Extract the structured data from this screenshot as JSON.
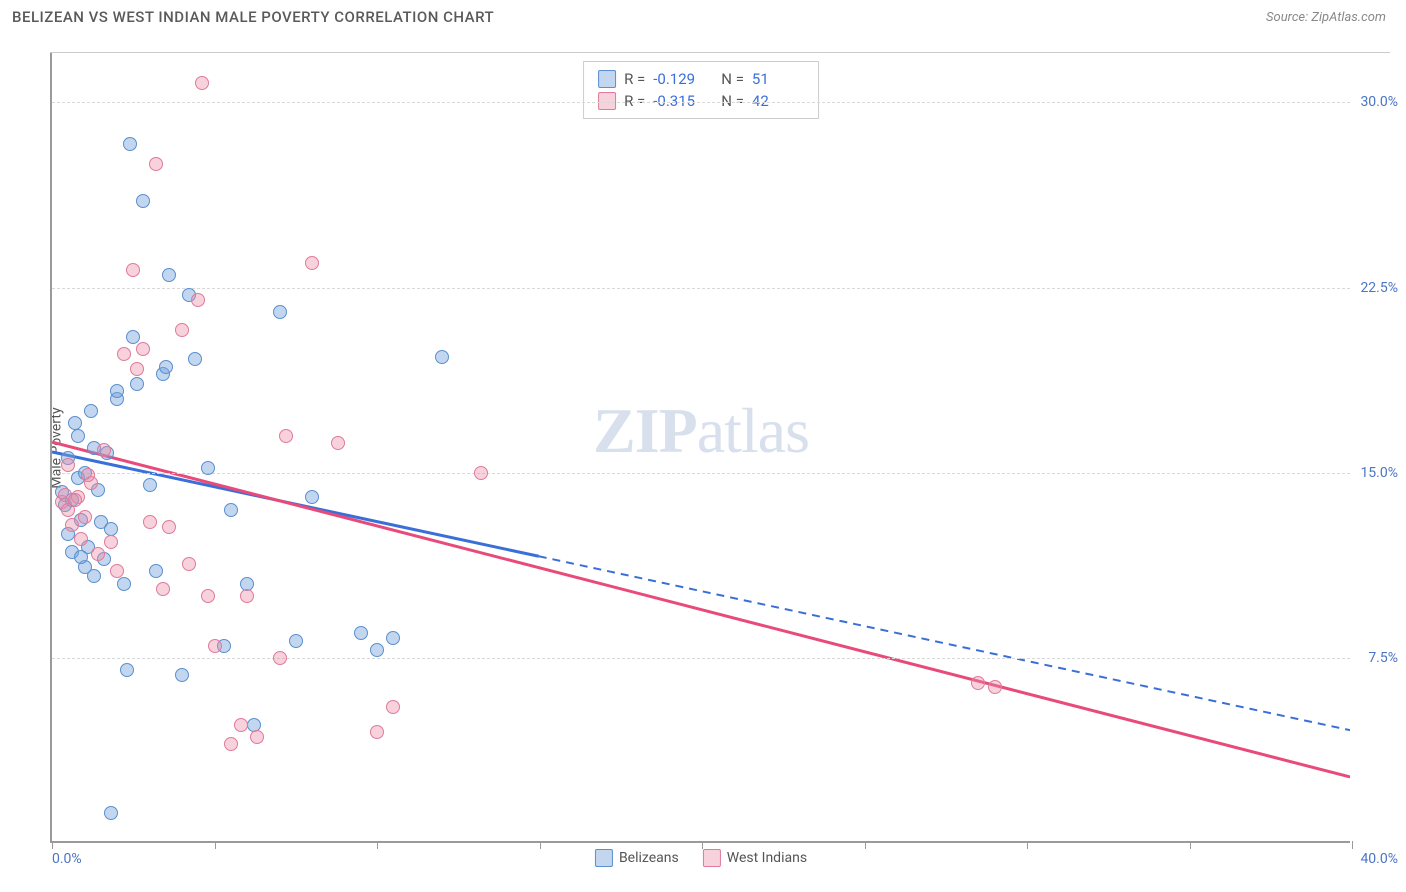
{
  "header": {
    "title": "BELIZEAN VS WEST INDIAN MALE POVERTY CORRELATION CHART",
    "source": "Source: ZipAtlas.com"
  },
  "chart": {
    "type": "scatter",
    "y_axis_label": "Male Poverty",
    "watermark_zip": "ZIP",
    "watermark_rest": "atlas",
    "xlim": [
      0,
      40
    ],
    "ylim": [
      0,
      32
    ],
    "x_ticks": [
      0,
      5,
      10,
      15,
      20,
      25,
      30,
      35,
      40
    ],
    "x_label_start": "0.0%",
    "x_label_end": "40.0%",
    "y_gridlines": [
      {
        "value": 7.5,
        "label": "7.5%"
      },
      {
        "value": 15.0,
        "label": "15.0%"
      },
      {
        "value": 22.5,
        "label": "22.5%"
      },
      {
        "value": 30.0,
        "label": "30.0%"
      }
    ],
    "series": [
      {
        "name": "Belizeans",
        "fill": "rgba(120,165,220,0.45)",
        "stroke": "#5a8fd0",
        "trend_color": "#3a6fd8",
        "trend_solid_end_x": 15,
        "r_value": "-0.129",
        "n_value": "51",
        "trend": {
          "x1": 0,
          "y1": 15.8,
          "x2": 40,
          "y2": 4.5
        },
        "points": [
          [
            0.3,
            14.2
          ],
          [
            0.4,
            13.7
          ],
          [
            0.5,
            15.6
          ],
          [
            0.5,
            12.5
          ],
          [
            0.6,
            11.8
          ],
          [
            0.7,
            17.0
          ],
          [
            0.8,
            14.8
          ],
          [
            0.8,
            16.5
          ],
          [
            0.9,
            13.1
          ],
          [
            1.0,
            11.2
          ],
          [
            1.0,
            15.0
          ],
          [
            1.1,
            12.0
          ],
          [
            1.2,
            17.5
          ],
          [
            1.3,
            10.8
          ],
          [
            1.4,
            14.3
          ],
          [
            1.5,
            13.0
          ],
          [
            1.6,
            11.5
          ],
          [
            1.7,
            15.8
          ],
          [
            1.8,
            12.7
          ],
          [
            2.0,
            18.0
          ],
          [
            2.0,
            18.3
          ],
          [
            2.2,
            10.5
          ],
          [
            2.4,
            28.3
          ],
          [
            2.5,
            20.5
          ],
          [
            2.6,
            18.6
          ],
          [
            2.8,
            26.0
          ],
          [
            3.0,
            14.5
          ],
          [
            3.2,
            11.0
          ],
          [
            3.4,
            19.0
          ],
          [
            3.5,
            19.3
          ],
          [
            3.6,
            23.0
          ],
          [
            4.0,
            6.8
          ],
          [
            4.2,
            22.2
          ],
          [
            4.4,
            19.6
          ],
          [
            4.8,
            15.2
          ],
          [
            5.3,
            8.0
          ],
          [
            5.5,
            13.5
          ],
          [
            6.0,
            10.5
          ],
          [
            6.2,
            4.8
          ],
          [
            7.0,
            21.5
          ],
          [
            7.5,
            8.2
          ],
          [
            8.0,
            14.0
          ],
          [
            9.5,
            8.5
          ],
          [
            10.0,
            7.8
          ],
          [
            10.5,
            8.3
          ],
          [
            12.0,
            19.7
          ],
          [
            1.8,
            1.2
          ],
          [
            2.3,
            7.0
          ],
          [
            0.6,
            13.9
          ],
          [
            0.9,
            11.6
          ],
          [
            1.3,
            16.0
          ]
        ]
      },
      {
        "name": "West Indians",
        "fill": "rgba(235,140,165,0.40)",
        "stroke": "#e07a9a",
        "trend_color": "#e84a7a",
        "trend_solid_end_x": 40,
        "r_value": "-0.315",
        "n_value": "42",
        "trend": {
          "x1": 0,
          "y1": 16.2,
          "x2": 40,
          "y2": 2.6
        },
        "points": [
          [
            0.3,
            13.8
          ],
          [
            0.4,
            14.1
          ],
          [
            0.5,
            13.5
          ],
          [
            0.5,
            15.3
          ],
          [
            0.6,
            12.9
          ],
          [
            0.8,
            14.0
          ],
          [
            0.9,
            12.3
          ],
          [
            1.0,
            13.2
          ],
          [
            1.2,
            14.6
          ],
          [
            1.4,
            11.7
          ],
          [
            1.6,
            15.9
          ],
          [
            2.0,
            11.0
          ],
          [
            2.2,
            19.8
          ],
          [
            2.5,
            23.2
          ],
          [
            2.8,
            20.0
          ],
          [
            3.0,
            13.0
          ],
          [
            3.2,
            27.5
          ],
          [
            3.4,
            10.3
          ],
          [
            3.6,
            12.8
          ],
          [
            4.0,
            20.8
          ],
          [
            4.2,
            11.3
          ],
          [
            4.5,
            22.0
          ],
          [
            4.6,
            30.8
          ],
          [
            4.8,
            10.0
          ],
          [
            5.0,
            8.0
          ],
          [
            5.5,
            4.0
          ],
          [
            5.8,
            4.8
          ],
          [
            6.0,
            10.0
          ],
          [
            6.3,
            4.3
          ],
          [
            7.0,
            7.5
          ],
          [
            7.2,
            16.5
          ],
          [
            8.0,
            23.5
          ],
          [
            8.8,
            16.2
          ],
          [
            10.0,
            4.5
          ],
          [
            10.5,
            5.5
          ],
          [
            13.2,
            15.0
          ],
          [
            28.5,
            6.5
          ],
          [
            29.0,
            6.3
          ],
          [
            0.7,
            13.9
          ],
          [
            1.1,
            14.9
          ],
          [
            1.8,
            12.2
          ],
          [
            2.6,
            19.2
          ]
        ]
      }
    ],
    "stats_legend": {
      "r_label": "R =",
      "n_label": "N ="
    },
    "bottom_legend": {
      "items": [
        "Belizeans",
        "West Indians"
      ]
    }
  }
}
